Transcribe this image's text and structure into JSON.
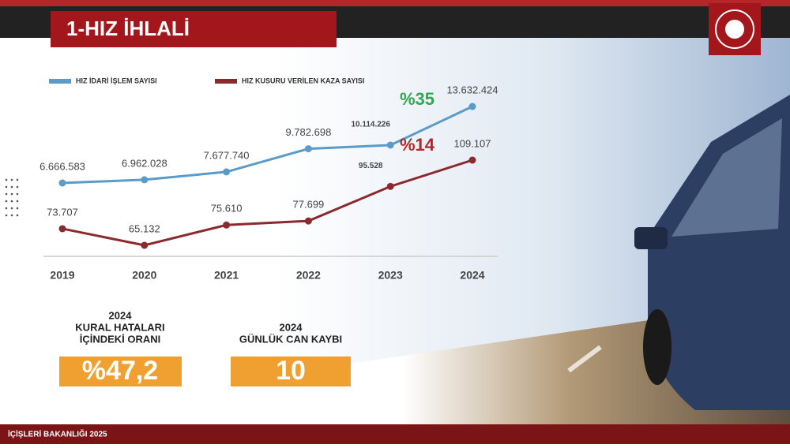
{
  "header": {
    "title": "1-HIZ İHLALİ"
  },
  "chart_data": {
    "type": "line",
    "categories": [
      "2019",
      "2020",
      "2021",
      "2022",
      "2023",
      "2024"
    ],
    "series": [
      {
        "name": "HIZ İDARİ İŞLEM SAYISI",
        "color": "#5b9bc8",
        "values": [
          6666583,
          6962028,
          7677740,
          9782698,
          10114226,
          13632424
        ],
        "value_labels": [
          "6.666.583",
          "6.962.028",
          "7.677.740",
          "9.782.698",
          "10.114.226",
          "13.632.424"
        ],
        "annotation": "%35",
        "annotation_color": "#2fa84f"
      },
      {
        "name": "HIZ KUSURU VERİLEN KAZA SAYISI",
        "color": "#8b2a2e",
        "values": [
          73707,
          65132,
          75610,
          77699,
          95528,
          109107
        ],
        "value_labels": [
          "73.707",
          "65.132",
          "75.610",
          "77.699",
          "95.528",
          "109.107"
        ],
        "annotation": "%14",
        "annotation_color": "#b5262b"
      }
    ]
  },
  "panels": [
    {
      "lines": [
        "2024",
        "KURAL HATALARI",
        "İÇİNDEKİ ORANI"
      ],
      "value": "%47,2"
    },
    {
      "lines": [
        "2024",
        "GÜNLÜK CAN KAYBI"
      ],
      "value": "10"
    }
  ],
  "footer": {
    "text": "İÇİŞLERİ BAKANLIĞI 2025"
  }
}
